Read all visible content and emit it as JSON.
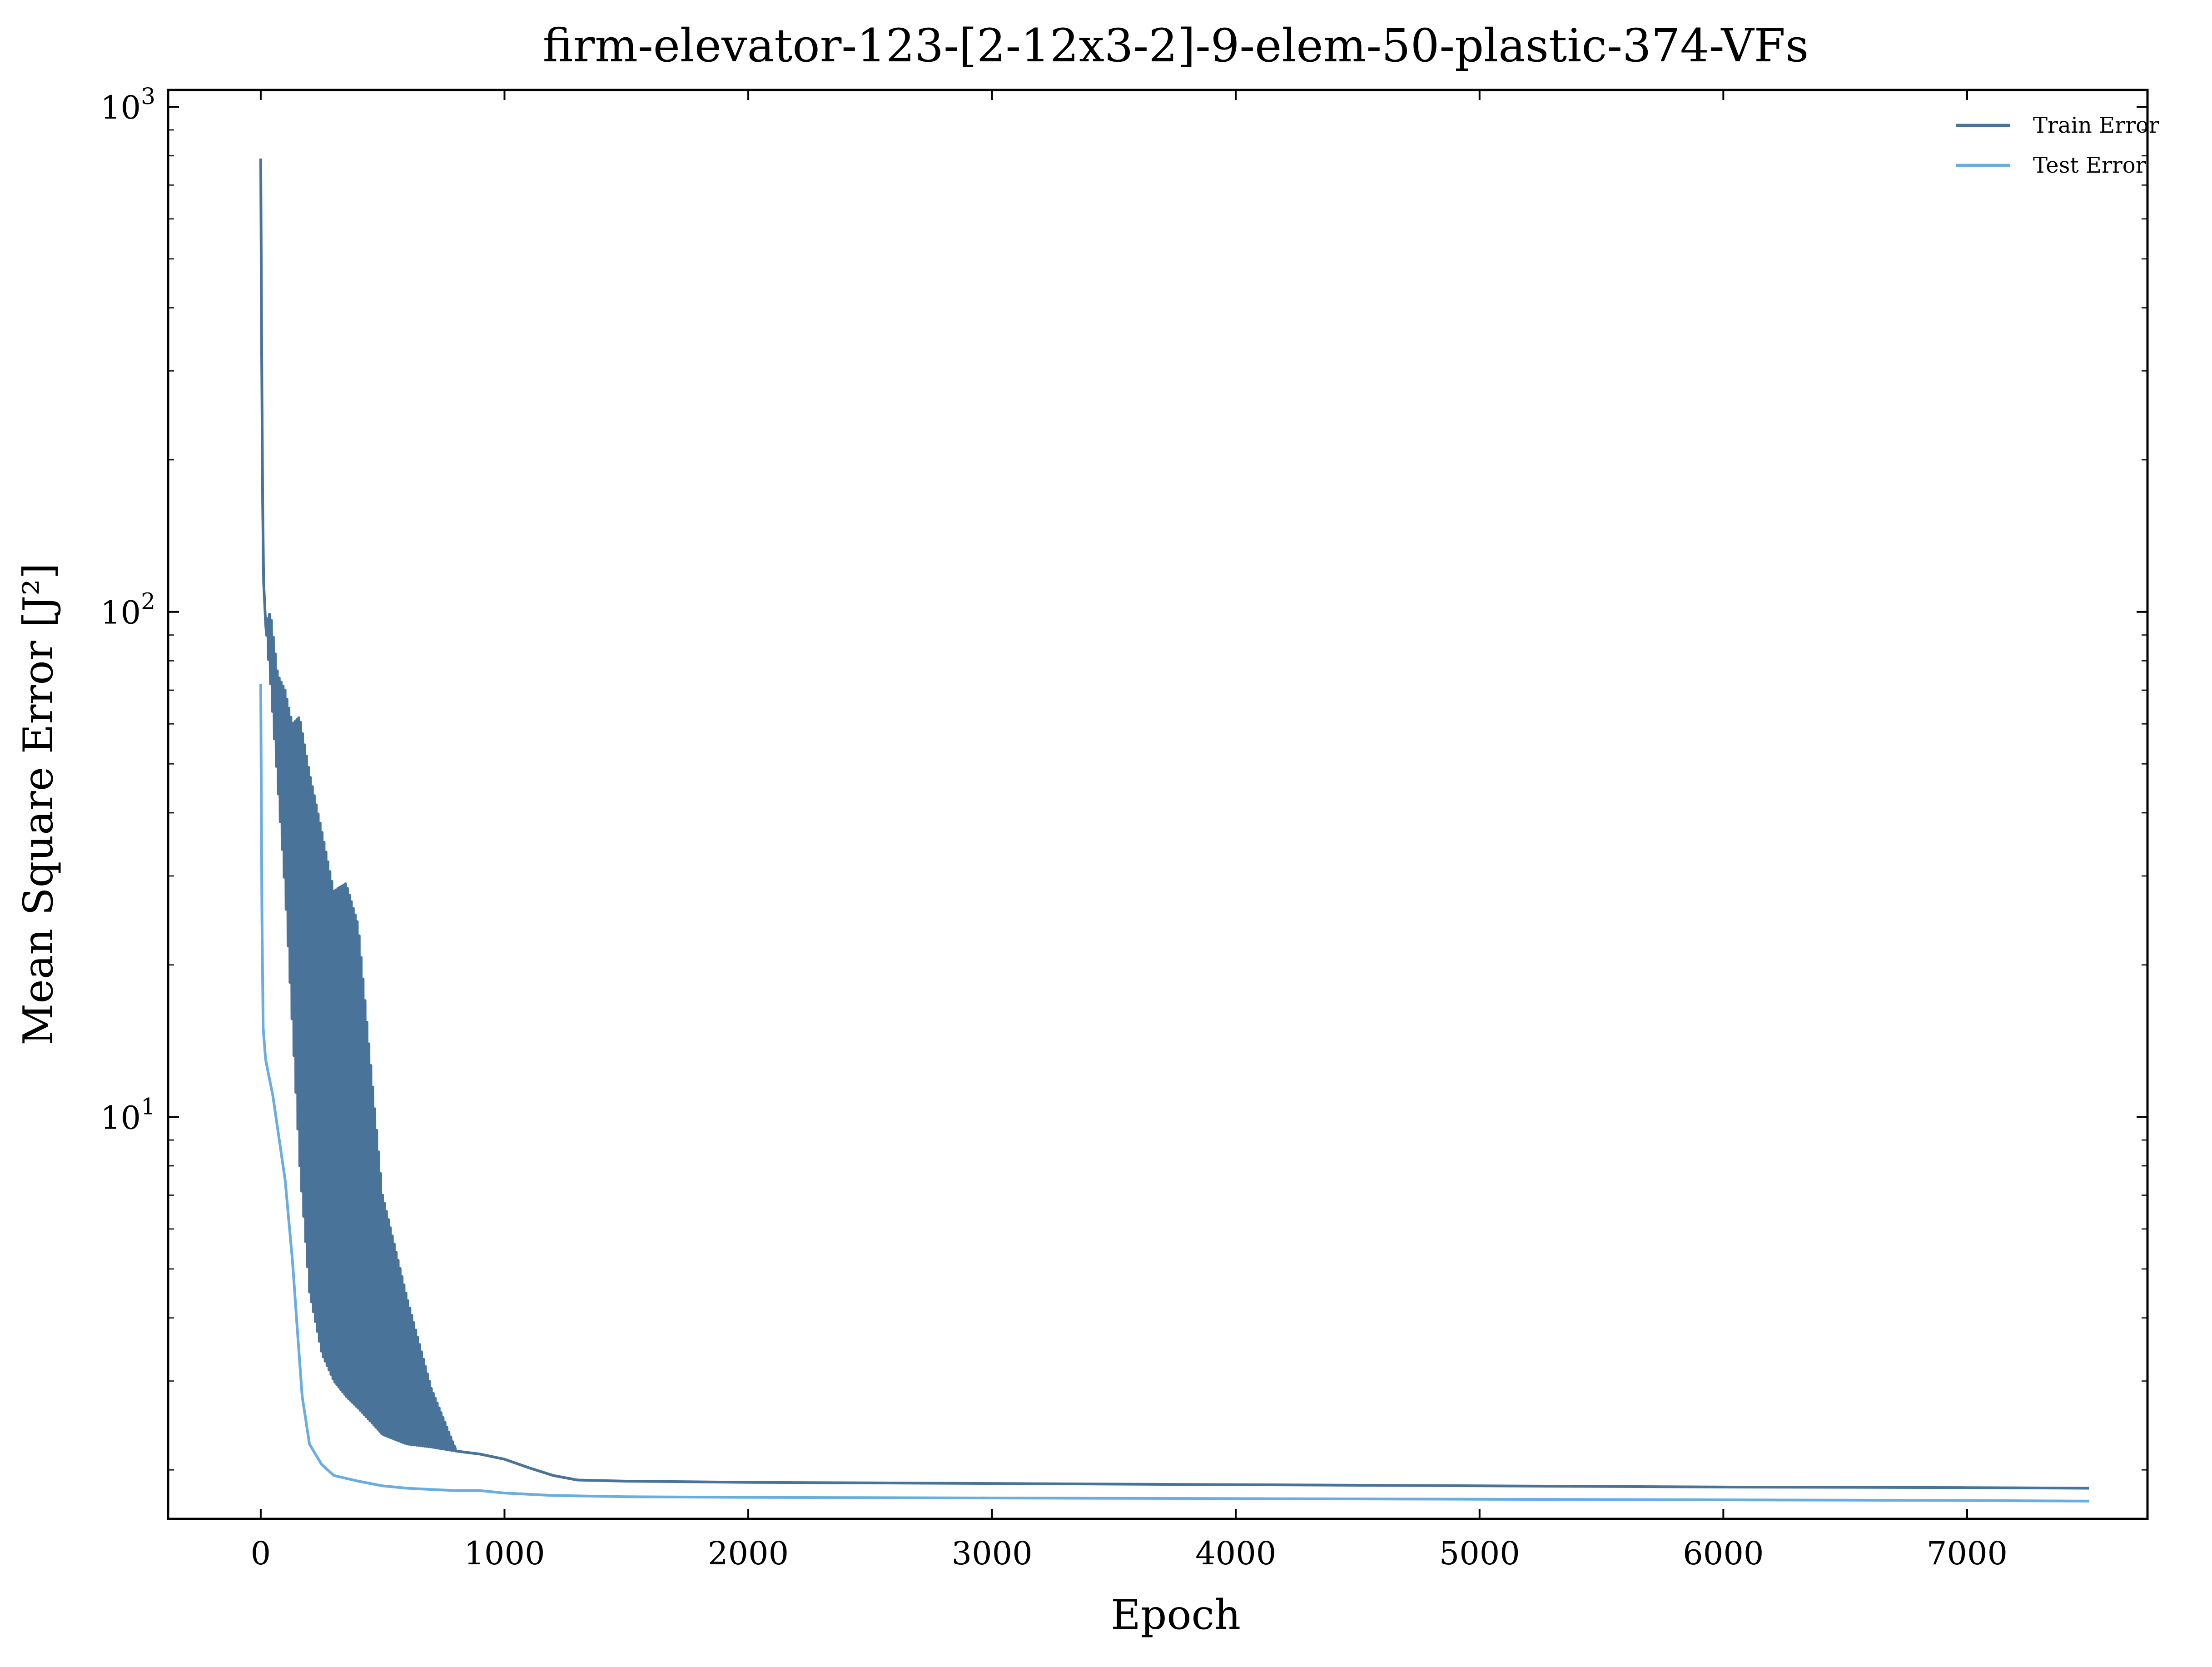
{
  "chart_data": {
    "type": "line",
    "title": "firm-elevator-123-[2-12x3-2]-9-elem-50-plastic-374-VFs",
    "xlabel": "Epoch",
    "ylabel": "Mean Square Error [J²]",
    "xlim": [
      -380,
      7740
    ],
    "ylim": [
      1.6,
      1080
    ],
    "yscale": "log",
    "x_ticks": [
      0,
      1000,
      2000,
      3000,
      4000,
      5000,
      6000,
      7000
    ],
    "y_ticks": [
      {
        "value": 10,
        "base": "10",
        "exp": "1"
      },
      {
        "value": 100,
        "base": "10",
        "exp": "2"
      },
      {
        "value": 1000,
        "base": "10",
        "exp": "3"
      }
    ],
    "grid": false,
    "legend_position": "top-right",
    "series": [
      {
        "name": "Train Error",
        "color": "#4a7399",
        "envelope_until": 800,
        "x": [
          0,
          5,
          10,
          20,
          40,
          70,
          100,
          130,
          160,
          200,
          250,
          300,
          350,
          400,
          500,
          600,
          700,
          800,
          900,
          1000,
          1100,
          1200,
          1300,
          1500,
          2000,
          3000,
          4000,
          5000,
          6000,
          7000,
          7500
        ],
        "low": [
          790,
          260,
          120,
          95,
          72,
          45,
          28,
          15,
          8,
          4.5,
          3.4,
          3.0,
          2.8,
          2.65,
          2.35,
          2.25,
          2.22,
          2.18,
          2.15,
          2.1,
          2.02,
          1.95,
          1.91,
          1.9,
          1.89,
          1.88,
          1.87,
          1.86,
          1.85,
          1.845,
          1.84
        ],
        "high": [
          790,
          260,
          120,
          95,
          100,
          75,
          70,
          60,
          62,
          48,
          37,
          28,
          29,
          24,
          7,
          4.4,
          2.9,
          2.2,
          2.17,
          2.14,
          2.05,
          1.96,
          1.91,
          1.9,
          1.89,
          1.88,
          1.87,
          1.86,
          1.85,
          1.845,
          1.84
        ]
      },
      {
        "name": "Test Error",
        "color": "#6aaee0",
        "x": [
          0,
          5,
          10,
          20,
          50,
          100,
          130,
          150,
          170,
          200,
          250,
          300,
          400,
          500,
          600,
          700,
          800,
          900,
          1000,
          1200,
          1500,
          2000,
          3000,
          4000,
          5000,
          6000,
          7000,
          7500
        ],
        "values": [
          72,
          25,
          15,
          13,
          11,
          7.5,
          5.2,
          3.8,
          2.8,
          2.25,
          2.05,
          1.95,
          1.9,
          1.86,
          1.84,
          1.83,
          1.82,
          1.82,
          1.8,
          1.78,
          1.77,
          1.765,
          1.76,
          1.755,
          1.75,
          1.745,
          1.74,
          1.735
        ]
      }
    ]
  }
}
